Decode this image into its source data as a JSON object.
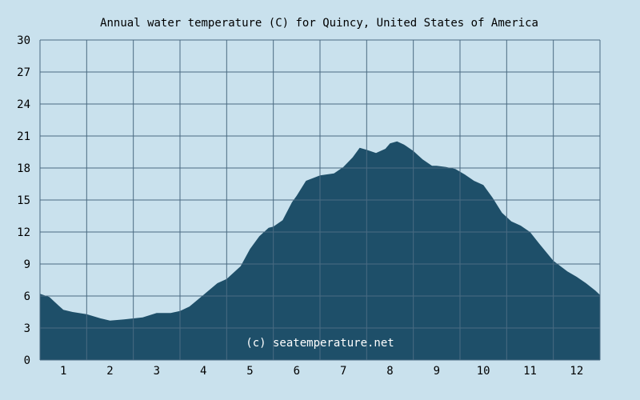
{
  "chart_data": {
    "type": "area",
    "title": "Annual water temperature (C) for Quincy, United States of America",
    "xlabel": "",
    "ylabel": "",
    "ylim": [
      0,
      30
    ],
    "xlim": [
      0.5,
      12.5
    ],
    "yticks": [
      0,
      3,
      6,
      9,
      12,
      15,
      18,
      21,
      24,
      27,
      30
    ],
    "xticks": [
      1,
      2,
      3,
      4,
      5,
      6,
      7,
      8,
      9,
      10,
      11,
      12
    ],
    "grid": true,
    "watermark": "(c) seatemperature.net",
    "colors": {
      "background": "#c9e1ed",
      "fill": "#1e4f69",
      "grid": "#4a6b82"
    },
    "x": [
      0.5,
      0.7,
      0.9,
      1.0,
      1.2,
      1.5,
      1.8,
      2.0,
      2.3,
      2.5,
      2.7,
      3.0,
      3.3,
      3.5,
      3.7,
      4.0,
      4.3,
      4.5,
      4.8,
      5.0,
      5.2,
      5.4,
      5.5,
      5.7,
      5.9,
      6.0,
      6.2,
      6.5,
      6.8,
      7.0,
      7.2,
      7.35,
      7.5,
      7.7,
      7.9,
      8.0,
      8.15,
      8.3,
      8.5,
      8.7,
      8.9,
      9.0,
      9.2,
      9.4,
      9.6,
      9.8,
      10.0,
      10.2,
      10.4,
      10.6,
      10.8,
      11.0,
      11.2,
      11.5,
      11.8,
      12.0,
      12.2,
      12.4,
      12.5
    ],
    "y": [
      6.2,
      5.9,
      5.1,
      4.7,
      4.5,
      4.3,
      3.9,
      3.7,
      3.8,
      3.9,
      4.0,
      4.4,
      4.4,
      4.6,
      5.0,
      6.1,
      7.2,
      7.6,
      8.8,
      10.4,
      11.6,
      12.4,
      12.5,
      13.1,
      14.8,
      15.4,
      16.8,
      17.3,
      17.5,
      18.1,
      19.0,
      19.9,
      19.7,
      19.4,
      19.8,
      20.3,
      20.5,
      20.2,
      19.6,
      18.8,
      18.2,
      18.2,
      18.1,
      17.9,
      17.4,
      16.8,
      16.4,
      15.2,
      13.8,
      13.0,
      12.6,
      12.0,
      10.9,
      9.3,
      8.3,
      7.8,
      7.2,
      6.5,
      6.1
    ]
  }
}
